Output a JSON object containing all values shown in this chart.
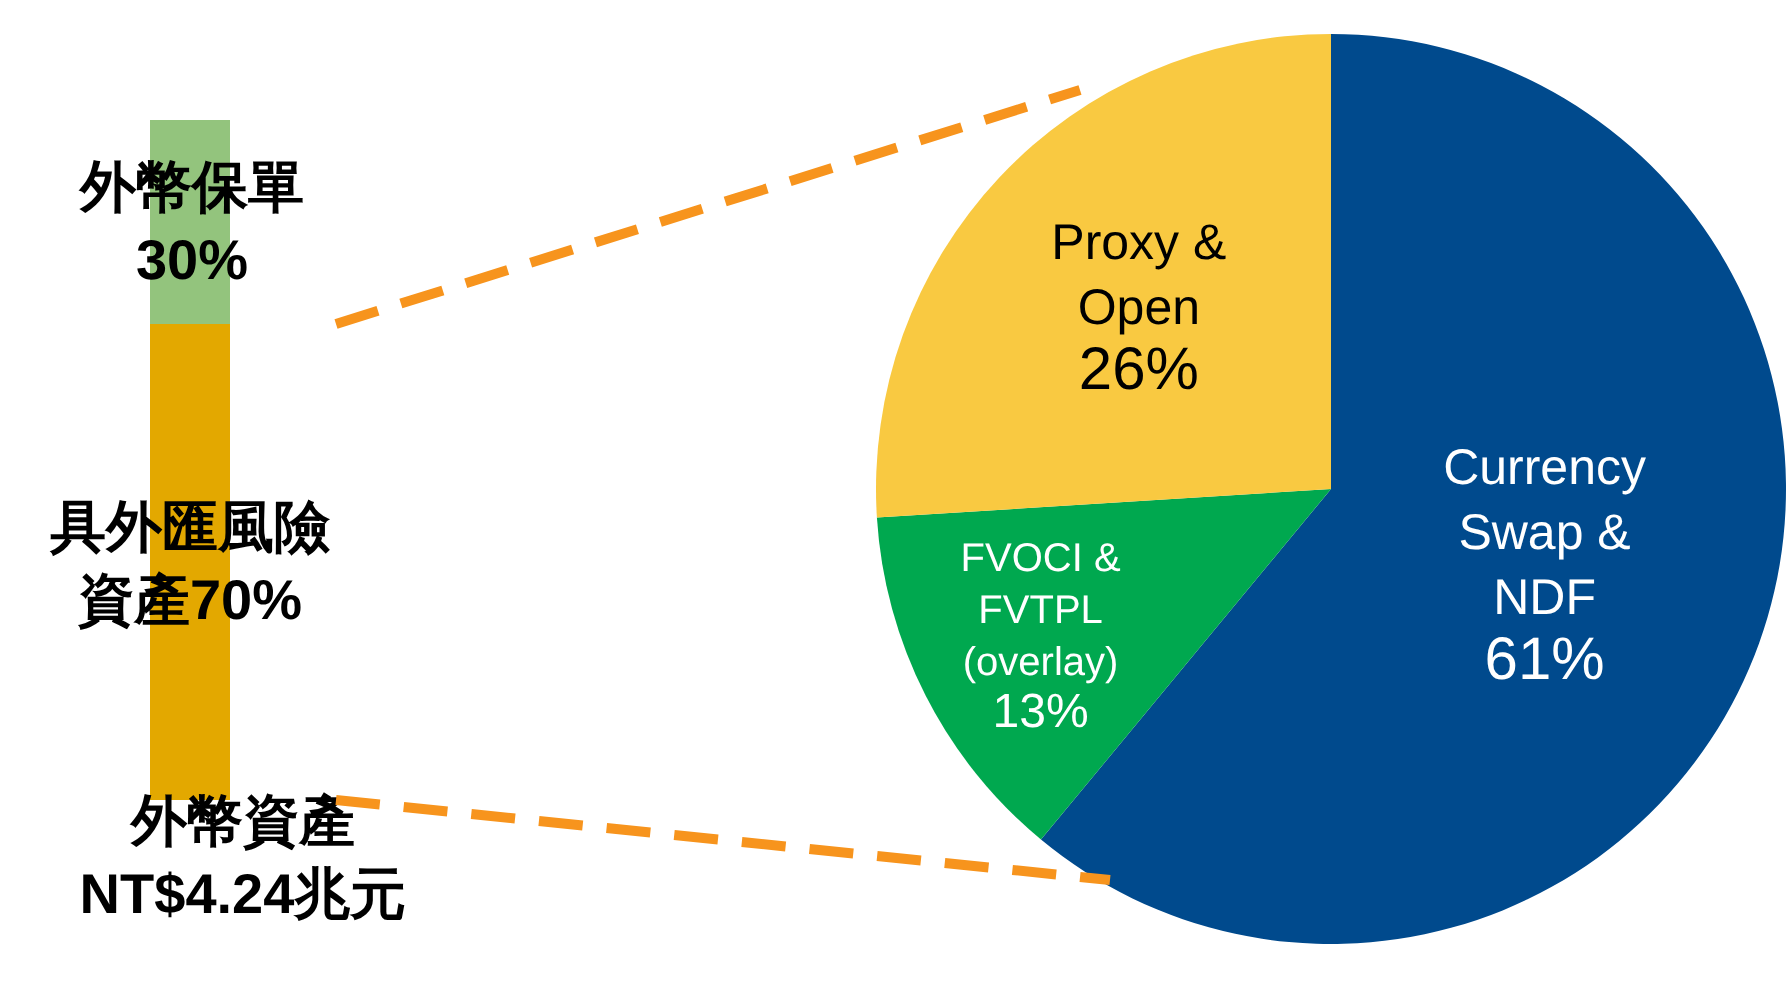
{
  "chart_data": [
    {
      "type": "bar",
      "stacked": true,
      "categories": [
        null
      ],
      "xlabel": "外幣資產 NT$4.24兆元",
      "series": [
        {
          "name": "具外匯風險資產",
          "color": "#e3a800",
          "values": [
            70
          ],
          "value_labels": [
            "70%"
          ]
        },
        {
          "name": "外幣保單",
          "color": "#93c47d",
          "values": [
            30
          ],
          "value_labels": [
            "30%"
          ]
        }
      ]
    },
    {
      "type": "pie",
      "categories": [
        "Currency Swap & NDF",
        "FVOCI & FVTPL (overlay)",
        "Proxy & Open"
      ],
      "values": [
        61,
        13,
        26
      ],
      "colors": [
        "#004a8d",
        "#00a84f",
        "#f9c941"
      ],
      "value_labels": [
        "61%",
        "13%",
        "26%"
      ]
    }
  ]
}
